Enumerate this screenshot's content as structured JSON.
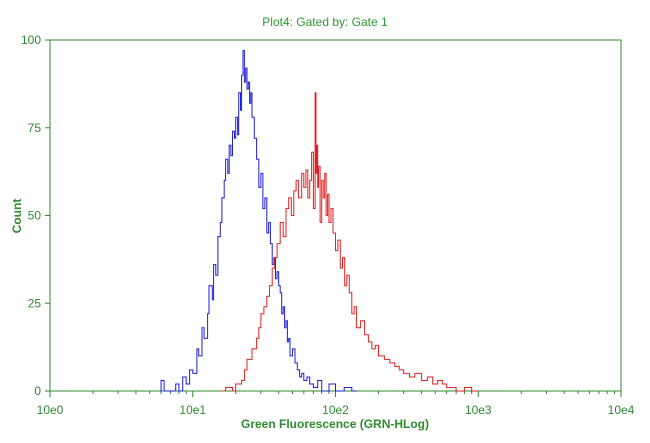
{
  "chart_data": {
    "type": "line",
    "title": "Plot4:  Gated by: Gate 1",
    "xlabel": "Green Fluorescence (GRN-HLog)",
    "ylabel": "Count",
    "xscale": "log",
    "xlim": [
      1,
      10000
    ],
    "ylim": [
      0,
      100
    ],
    "x_ticks": [
      {
        "value": 1,
        "label": "10e0"
      },
      {
        "value": 10,
        "label": "10e1"
      },
      {
        "value": 100,
        "label": "10e2"
      },
      {
        "value": 1000,
        "label": "10e3"
      },
      {
        "value": 10000,
        "label": "10e4"
      }
    ],
    "y_ticks": [
      {
        "value": 0,
        "label": "0"
      },
      {
        "value": 25,
        "label": "25"
      },
      {
        "value": 50,
        "label": "50"
      },
      {
        "value": 75,
        "label": "75"
      },
      {
        "value": 100,
        "label": "100"
      }
    ],
    "grid": false,
    "legend": "none",
    "axis_color": "#2e8b2e",
    "series": [
      {
        "color": "#1f1fd6",
        "x": [
          5.9,
          6.0,
          6.3,
          7.1,
          7.6,
          8.0,
          8.5,
          9.0,
          9.5,
          10.0,
          10.7,
          11.0,
          11.6,
          12.0,
          12.7,
          13.0,
          13.7,
          14.0,
          14.5,
          15.0,
          15.6,
          16.0,
          16.6,
          17.0,
          17.6,
          18.0,
          18.5,
          19.0,
          19.6,
          20.0,
          20.6,
          21.0,
          21.6,
          22.0,
          22.5,
          23.0,
          23.5,
          24.0,
          24.5,
          25.0,
          25.5,
          26.0,
          27.0,
          28.0,
          29.0,
          30.0,
          31.0,
          32.0,
          33.0,
          34.0,
          35.0,
          36.0,
          37.0,
          38.0,
          39.0,
          40.0,
          41.0,
          42.0,
          43.0,
          44.0,
          45.0,
          46.0,
          47.0,
          48.0,
          50.0,
          52.0,
          54.0,
          56.0,
          58.0,
          60.0,
          63.0,
          66.0,
          70.0,
          75.0,
          80.0,
          90.0,
          100.0,
          115.0,
          130.0,
          140.0
        ],
        "y": [
          0,
          3,
          0,
          0,
          2,
          0,
          4,
          2,
          6,
          5,
          12,
          10,
          18,
          15,
          22,
          30,
          26,
          36,
          33,
          44,
          48,
          55,
          60,
          66,
          62,
          70,
          67,
          74,
          72,
          78,
          73,
          85,
          80,
          90,
          97,
          88,
          92,
          86,
          88,
          82,
          85,
          78,
          72,
          66,
          58,
          62,
          52,
          55,
          45,
          48,
          42,
          36,
          38,
          32,
          34,
          30,
          28,
          22,
          24,
          18,
          20,
          14,
          15,
          10,
          12,
          8,
          6,
          4,
          5,
          3,
          4,
          2,
          1,
          3,
          0,
          2,
          0,
          1,
          0,
          0
        ]
      },
      {
        "color": "#e12222",
        "x": [
          16.0,
          17.0,
          19.0,
          20.0,
          22.0,
          23.0,
          24.0,
          26.0,
          28.0,
          29.0,
          30.0,
          31.5,
          33.0,
          34.5,
          36.0,
          37.5,
          39.0,
          41.0,
          43.0,
          45.0,
          47.0,
          49.0,
          51.0,
          53.0,
          55.0,
          58.0,
          60.0,
          62.0,
          64.0,
          66.0,
          68.0,
          70.0,
          72.0,
          73.0,
          74.0,
          75.0,
          76.0,
          78.0,
          80.0,
          82.0,
          84.0,
          86.0,
          88.0,
          90.0,
          93.0,
          96.0,
          100.0,
          104.0,
          108.0,
          112.0,
          116.0,
          120.0,
          125.0,
          130.0,
          135.0,
          140.0,
          150.0,
          160.0,
          170.0,
          180.0,
          190.0,
          200.0,
          220.0,
          240.0,
          260.0,
          280.0,
          300.0,
          330.0,
          360.0,
          400.0,
          440.0,
          480.0,
          520.0,
          560.0,
          600.0,
          650.0,
          700.0,
          800.0,
          900.0,
          1000.0
        ],
        "y": [
          0,
          1,
          0,
          2,
          3,
          6,
          9,
          12,
          15,
          18,
          22,
          24,
          27,
          30,
          35,
          38,
          42,
          48,
          44,
          52,
          55,
          50,
          57,
          60,
          55,
          62,
          58,
          63,
          55,
          60,
          68,
          52,
          85,
          62,
          70,
          58,
          64,
          48,
          60,
          55,
          62,
          50,
          56,
          48,
          52,
          45,
          40,
          43,
          35,
          38,
          30,
          33,
          28,
          22,
          24,
          18,
          20,
          16,
          14,
          12,
          13,
          10,
          9,
          8,
          7,
          6,
          5,
          4,
          5,
          3,
          4,
          2,
          3,
          2,
          1,
          1,
          0,
          1,
          0,
          0
        ]
      }
    ]
  }
}
